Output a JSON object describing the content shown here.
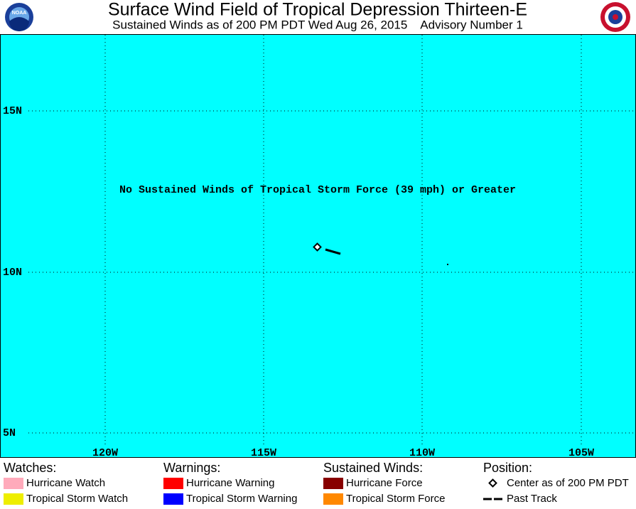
{
  "header": {
    "title": "Surface Wind Field of Tropical Depression Thirteen-E",
    "subtitle": "Sustained Winds as of 200 PM PDT Wed Aug 26, 2015    Advisory Number 1"
  },
  "map": {
    "lat_labels": [
      "15N",
      "10N",
      "5N"
    ],
    "lon_labels": [
      "120W",
      "115W",
      "110W",
      "105W"
    ],
    "message": "No Sustained Winds of Tropical Storm Force (39 mph) or Greater"
  },
  "legend": {
    "groups": [
      {
        "title": "Watches:",
        "items": [
          {
            "label": "Hurricane Watch",
            "color": "#ffaabb"
          },
          {
            "label": "Tropical Storm Watch",
            "color": "#eeee00"
          }
        ]
      },
      {
        "title": "Warnings:",
        "items": [
          {
            "label": "Hurricane Warning",
            "color": "#ff0000"
          },
          {
            "label": "Tropical Storm Warning",
            "color": "#0000ff"
          }
        ]
      },
      {
        "title": "Sustained Winds:",
        "items": [
          {
            "label": "Hurricane Force",
            "color": "#880000"
          },
          {
            "label": "Tropical Storm Force",
            "color": "#ff8800"
          }
        ]
      },
      {
        "title": "Position:",
        "items": [
          {
            "label": "Center as of 200 PM PDT"
          },
          {
            "label": "Past Track"
          }
        ]
      }
    ]
  }
}
